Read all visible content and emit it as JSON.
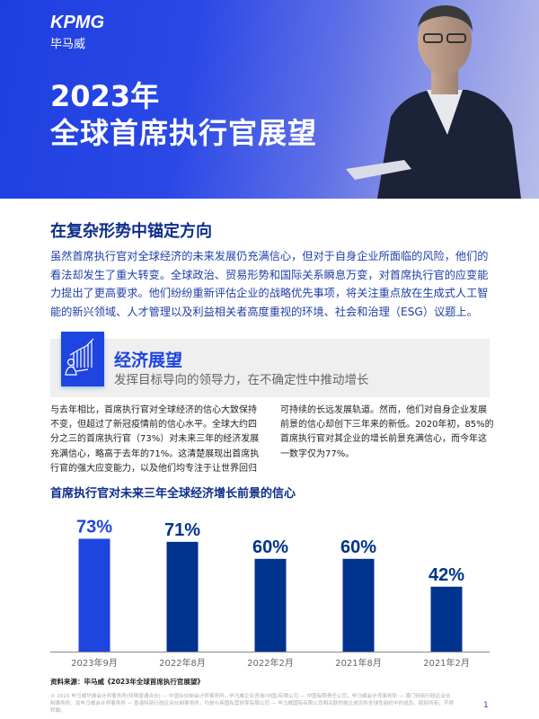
{
  "header": {
    "logo": "KPMG",
    "logo_cn": "毕马威",
    "title_line1": "2023年",
    "title_line2": "全球首席执行官展望"
  },
  "intro": {
    "heading": "在复杂形势中锚定方向",
    "body": "虽然首席执行官对全球经济的未来发展仍充满信心，但对于自身企业所面临的风险，他们的看法却发生了重大转变。全球政治、贸易形势和国际关系瞬息万变，对首席执行官的应变能力提出了更高要求。他们纷纷重新评估企业的战略优先事项，将关注重点放在生成式人工智能的新兴领域、人才管理以及利益相关者高度重视的环境、社会和治理（ESG）议题上。"
  },
  "section": {
    "icon": "growth-chart-person-icon",
    "title": "经济展望",
    "subtitle": "发挥目标导向的领导力，在不确定性中推动增长",
    "col_left": "与去年相比，首席执行官对全球经济的信心大致保持不变，但超过了新冠疫情前的信心水平。全球大约四分之三的首席执行官（73%）对未来三年的经济发展充满信心，略高于去年的71%。这清楚展现出首席执行官的强大应变能力，以及他们均专注于让世界回归",
    "col_right": "可持续的长远发展轨道。然而，他们对自身企业发展前景的信心却创下三年来的新低。2020年初，85%的首席执行官对其企业的增长前景充满信心，而今年这一数字仅为77%。"
  },
  "chart_data": {
    "type": "bar",
    "title": "首席执行官对未来三年全球经济增长前景的信心",
    "categories": [
      "2023年9月",
      "2022年8月",
      "2022年2月",
      "2021年8月",
      "2021年2月"
    ],
    "values": [
      73,
      71,
      60,
      60,
      42
    ],
    "data_labels": [
      "73%",
      "71%",
      "60%",
      "60%",
      "42%"
    ],
    "unit": "%",
    "ylim": [
      0,
      100
    ],
    "grid": false,
    "colors": {
      "highlight": "#1f45e0",
      "default": "#00338d",
      "label_highlight": "#1f45e0",
      "label_default": "#00338d"
    }
  },
  "source": "资料来源：毕马威《2023年全球首席执行官展望》",
  "footer": {
    "legal": "© 2023 毕马威华振会计师事务所(特殊普通合伙) — 中国合伙制会计师事务所，毕马威企业咨询(中国)有限公司 — 中国有限责任公司，毕马威会计师事务所 — 澳门特别行政区合伙制事务所，及毕马威会计师事务所 — 香港特别行政区合伙制事务所，均是与英国私营担保有限公司 — 毕马威国际有限公司相关联的独立成员所全球性组织中的成员。版权所有，不得转载。",
    "page": "1"
  },
  "colors": {
    "brand_blue": "#1e45e0",
    "navy": "#00338d"
  }
}
